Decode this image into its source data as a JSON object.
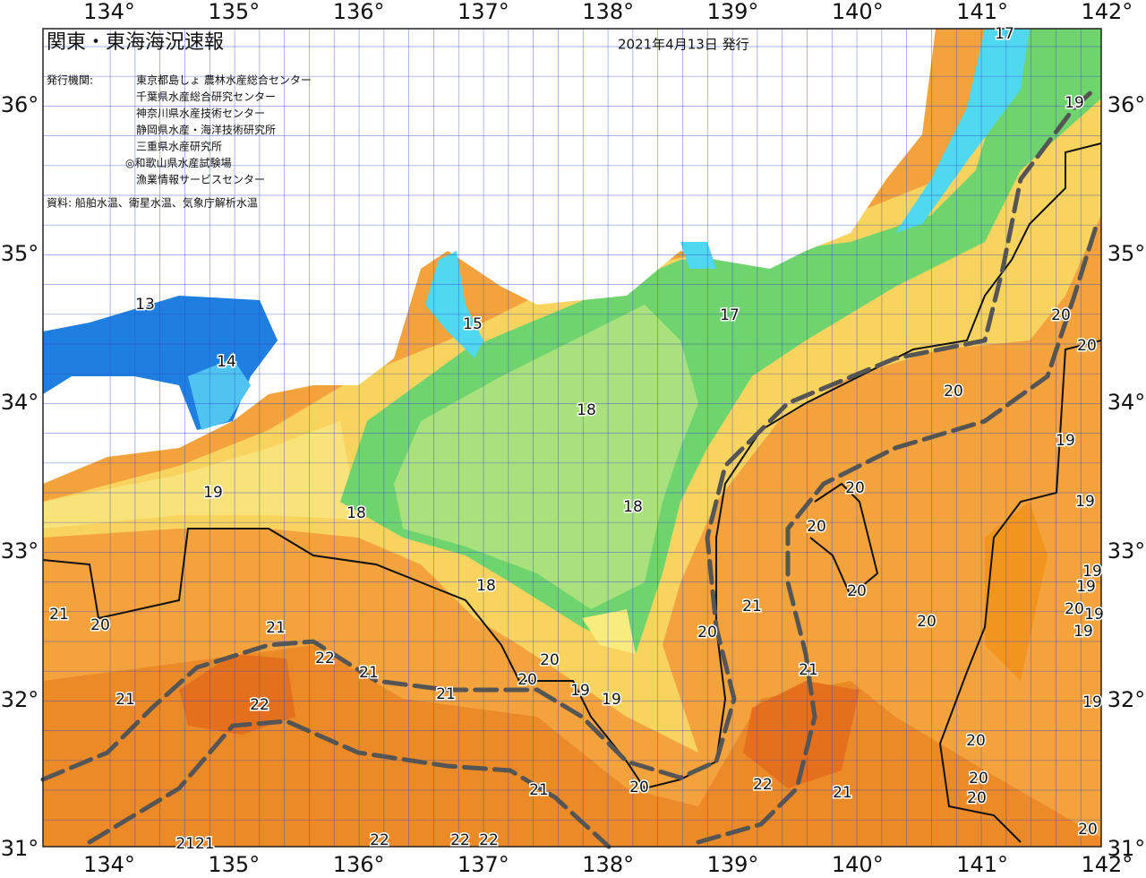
{
  "header": {
    "title": "関東・東海海況速報",
    "date": "2021年4月13日 発行"
  },
  "agencies": {
    "label": "発行機関:",
    "items": [
      "東京都島しょ 農林水産総合センター",
      "千葉県水産総合研究センター",
      "神奈川県水産技術センター",
      "静岡県水産・海洋技術研究所",
      "三重県水産研究所",
      "◎和歌山県水産試験場",
      "漁業情報サービスセンター"
    ]
  },
  "source": "資料: 船舶水温、衛星水温、気象庁解析水温",
  "longitude_labels": [
    "134°",
    "135°",
    "136°",
    "137°",
    "138°",
    "139°",
    "140°",
    "141°",
    "142°"
  ],
  "latitude_labels": [
    "36°",
    "35°",
    "34°",
    "33°",
    "32°",
    "31°"
  ],
  "contour_labels": [
    "17",
    "19",
    "13",
    "15",
    "17",
    "14",
    "20",
    "20",
    "18",
    "20",
    "19",
    "19",
    "18",
    "18",
    "20",
    "19",
    "20",
    "19",
    "21",
    "20",
    "18",
    "20",
    "19",
    "21",
    "20",
    "19",
    "20",
    "19",
    "20",
    "21",
    "22",
    "20",
    "21",
    "20",
    "19",
    "19",
    "21",
    "21",
    "21",
    "22",
    "19",
    "20",
    "20",
    "22",
    "21",
    "20",
    "21",
    "20",
    "20",
    "2121",
    "22",
    "22",
    "22"
  ]
}
